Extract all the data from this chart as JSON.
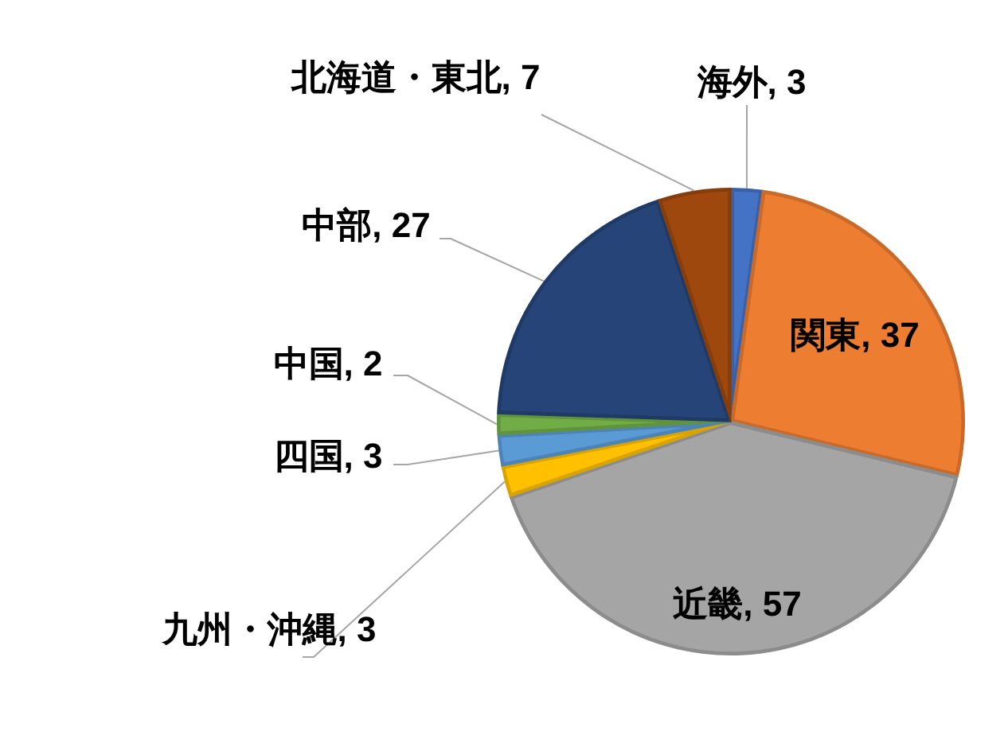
{
  "chart_data": {
    "type": "pie",
    "categories": [
      "海外",
      "関東",
      "近畿",
      "九州・沖縄",
      "四国",
      "中国",
      "中部",
      "北海道・東北"
    ],
    "values": [
      3,
      37,
      57,
      3,
      3,
      2,
      27,
      7
    ],
    "value_labels": [
      ", 3",
      ", 37",
      ", 57",
      ", 3",
      ", 3",
      ", 2",
      ", 27",
      ", 7"
    ],
    "colors": [
      "#4472c4",
      "#ed7d31",
      "#a5a5a5",
      "#ffc000",
      "#5b9bd5",
      "#70ad47",
      "#264478",
      "#9e480e"
    ],
    "legend": false
  }
}
